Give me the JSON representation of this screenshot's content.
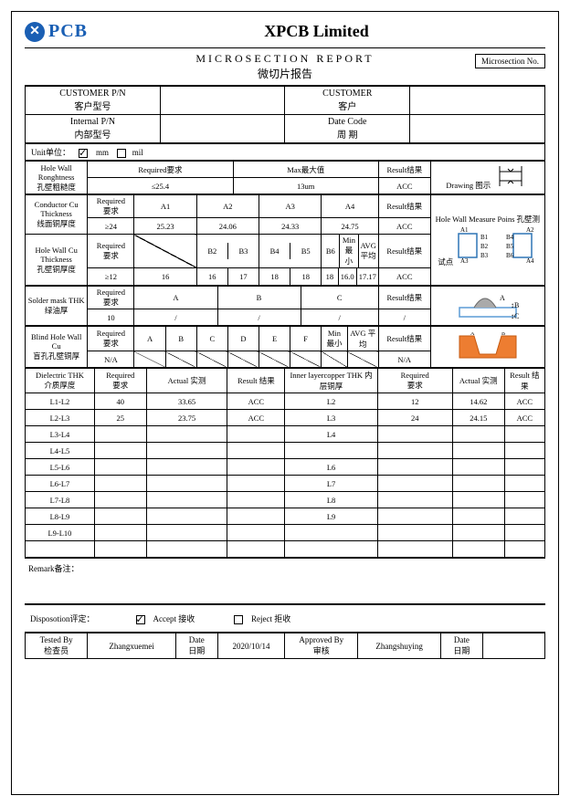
{
  "company": "XPCB Limited",
  "logo_text": "PCB",
  "title_en": "MICROSECTION  REPORT",
  "title_cn": "微切片报告",
  "ms_no_label": "Microsection No.",
  "labels": {
    "cust_pn_en": "CUSTOMER P/N",
    "cust_pn_cn": "客户型号",
    "cust_en": "CUSTOMER",
    "cust_cn": "客户",
    "int_pn_en": "Internal  P/N",
    "int_pn_cn": "内部型号",
    "date_code_en": "Date Code",
    "date_code_cn": "周   期",
    "unit": "Unit单位：",
    "mm": "mm",
    "mil": "mil",
    "hwr_en": "Hole Wall Ronghtness",
    "hwr_cn": "孔壁粗糙度",
    "req": "Required要求",
    "max": "Max最大值",
    "result": "Result结果",
    "drawing": "Drawing   图示",
    "cct_en": "Conductor Cu Thickness",
    "cct_cn": "线面铜厚度",
    "hwmp": "Hole Wall Measure Poins   孔壁测试点",
    "hwc_en": "Hole Wall Cu Thickness",
    "hwc_cn": "孔壁铜厚度",
    "min": "Min 最小",
    "avg": "AVG 平均",
    "smt_en": "Solder mask THK",
    "smt_cn": "绿油厚",
    "bhw_en": "Blind Hole Wall Cu",
    "bhw_cn": "盲孔孔壁铜厚",
    "diel_en": "Dielectric THK",
    "diel_cn": "介质厚度",
    "actual": "Actual 实测",
    "result2": "Result 结果",
    "ilc": "Inner layercopper THK 内层铜厚",
    "remark": "Remark备注：",
    "disp": "Disposotion评定：",
    "accept": "Accept  接收",
    "reject": "Reject  拒收",
    "tested_en": "Tested By",
    "tested_cn": "检查员",
    "date_en": "Date",
    "date_cn": "日期",
    "approved_en": "Approved By",
    "approved_cn": "审核"
  },
  "hwr": {
    "req": "≤25.4",
    "max": "13um",
    "result": "ACC"
  },
  "cct": {
    "req": "≥24",
    "a1v": "25.23",
    "a2v": "24.06",
    "a3v": "24.33",
    "a4v": "24.75",
    "result": "ACC",
    "a1": "A1",
    "a2": "A2",
    "a3": "A3",
    "a4": "A4"
  },
  "hwc": {
    "req": "≥12",
    "b2": "B2",
    "b3": "B3",
    "b4": "B4",
    "b5": "B5",
    "b6": "B6",
    "v1": "16",
    "v2": "16",
    "v3": "17",
    "v4": "18",
    "v5": "18",
    "v6": "18",
    "min": "16.0",
    "avg": "17.17",
    "result": "ACC"
  },
  "smt": {
    "req": "10",
    "A": "A",
    "B": "B",
    "C": "C",
    "va": "/",
    "vb": "/",
    "vc": "/",
    "result": "/"
  },
  "bhw": {
    "req": "N/A",
    "A": "A",
    "B": "B",
    "C": "C",
    "D": "D",
    "E": "E",
    "F": "F",
    "result": "N/A"
  },
  "diel": {
    "rows": [
      {
        "l": "L1-L2",
        "req": "40",
        "act": "33.65",
        "res": "ACC",
        "il": "L2",
        "ireq": "12",
        "iact": "14.62",
        "ires": "ACC"
      },
      {
        "l": "L2-L3",
        "req": "25",
        "act": "23.75",
        "res": "ACC",
        "il": "L3",
        "ireq": "24",
        "iact": "24.15",
        "ires": "ACC"
      },
      {
        "l": "L3-L4",
        "req": "",
        "act": "",
        "res": "",
        "il": "L4",
        "ireq": "",
        "iact": "",
        "ires": ""
      },
      {
        "l": "L4-L5",
        "req": "",
        "act": "",
        "res": "",
        "il": "",
        "ireq": "",
        "iact": "",
        "ires": ""
      },
      {
        "l": "L5-L6",
        "req": "",
        "act": "",
        "res": "",
        "il": "L6",
        "ireq": "",
        "iact": "",
        "ires": ""
      },
      {
        "l": "L6-L7",
        "req": "",
        "act": "",
        "res": "",
        "il": "L7",
        "ireq": "",
        "iact": "",
        "ires": ""
      },
      {
        "l": "L7-L8",
        "req": "",
        "act": "",
        "res": "",
        "il": "L8",
        "ireq": "",
        "iact": "",
        "ires": ""
      },
      {
        "l": "L8-L9",
        "req": "",
        "act": "",
        "res": "",
        "il": "L9",
        "ireq": "",
        "iact": "",
        "ires": ""
      },
      {
        "l": "L9-L10",
        "req": "",
        "act": "",
        "res": "",
        "il": "",
        "ireq": "",
        "iact": "",
        "ires": ""
      },
      {
        "l": "",
        "req": "",
        "act": "",
        "res": "",
        "il": "",
        "ireq": "",
        "iact": "",
        "ires": ""
      }
    ]
  },
  "sig": {
    "tested": "Zhangxuemei",
    "date": "2020/10/14",
    "approved": "Zhangshuying",
    "date2": ""
  },
  "colors": {
    "accent": "#1a5fb4",
    "orange": "#ed7d31",
    "blue": "#5b9bd5",
    "line": "#000000"
  }
}
